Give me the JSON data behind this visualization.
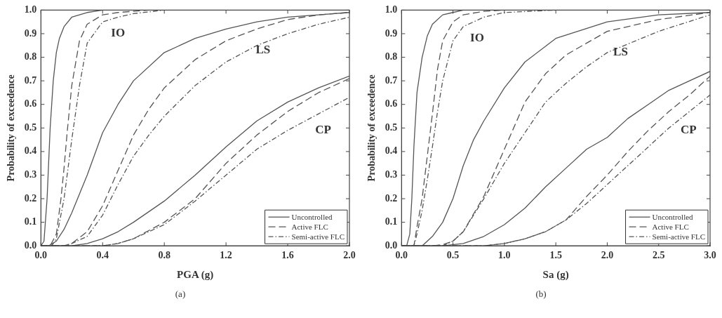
{
  "chart_data": [
    {
      "type": "line",
      "xlabel": "PGA (g)",
      "ylabel": "Probability of exceedence",
      "xlim": [
        0,
        2
      ],
      "ylim": [
        0,
        1
      ],
      "xticks": [
        {
          "value": 0,
          "label": "0.0"
        },
        {
          "value": 0.4,
          "label": "0.4"
        },
        {
          "value": 0.8,
          "label": "0.8"
        },
        {
          "value": 1.2,
          "label": "1.2"
        },
        {
          "value": 1.6,
          "label": "1.6"
        },
        {
          "value": 2,
          "label": "2.0"
        }
      ],
      "yticks": [
        {
          "value": 0,
          "label": "0.0"
        },
        {
          "value": 0.1,
          "label": "0.1"
        },
        {
          "value": 0.2,
          "label": "0.2"
        },
        {
          "value": 0.3,
          "label": "0.3"
        },
        {
          "value": 0.4,
          "label": "0.4"
        },
        {
          "value": 0.5,
          "label": "0.5"
        },
        {
          "value": 0.6,
          "label": "0.6"
        },
        {
          "value": 0.7,
          "label": "0.7"
        },
        {
          "value": 0.8,
          "label": "0.8"
        },
        {
          "value": 0.9,
          "label": "0.9"
        },
        {
          "value": 1,
          "label": "1.0"
        }
      ],
      "grid": false,
      "legend": "bottom right",
      "series": [
        {
          "name": "Uncontrolled",
          "color": "#555555",
          "line_style": "solid",
          "x": [
            0,
            0.02,
            0.04,
            0.06,
            0.08,
            0.1,
            0.12,
            0.15,
            0.2,
            0.3,
            0.4,
            2.0
          ],
          "values": [
            0,
            0.02,
            0.2,
            0.5,
            0.7,
            0.82,
            0.88,
            0.93,
            0.97,
            0.99,
            1.0,
            1.0
          ]
        },
        {
          "name": "Active FLC",
          "color": "#555555",
          "line_style": "dashed",
          "x": [
            0,
            0.06,
            0.1,
            0.13,
            0.15,
            0.17,
            0.2,
            0.25,
            0.3,
            0.4,
            0.5,
            0.7,
            2.0
          ],
          "values": [
            0,
            0,
            0.05,
            0.2,
            0.33,
            0.48,
            0.68,
            0.87,
            0.94,
            0.98,
            0.99,
            1.0,
            1.0
          ]
        },
        {
          "name": "Semi-active FLC",
          "color": "#555555",
          "line_style": "dotted",
          "x": [
            0,
            0.07,
            0.1,
            0.15,
            0.2,
            0.25,
            0.3,
            0.4,
            0.5,
            0.6,
            0.8,
            2.0
          ],
          "values": [
            0,
            0,
            0.03,
            0.2,
            0.45,
            0.68,
            0.86,
            0.95,
            0.97,
            0.985,
            1.0,
            1.0
          ]
        },
        {
          "color": "#555555",
          "line_style": "solid",
          "x": [
            0,
            0.05,
            0.1,
            0.15,
            0.2,
            0.3,
            0.4,
            0.5,
            0.6,
            0.8,
            1.0,
            1.2,
            1.4,
            1.6,
            1.8,
            2.0
          ],
          "values": [
            0,
            0,
            0.02,
            0.07,
            0.14,
            0.3,
            0.48,
            0.6,
            0.7,
            0.82,
            0.88,
            0.92,
            0.95,
            0.97,
            0.98,
            0.99
          ]
        },
        {
          "color": "#555555",
          "line_style": "dashed",
          "x": [
            0,
            0.15,
            0.2,
            0.3,
            0.4,
            0.5,
            0.6,
            0.7,
            0.8,
            1.0,
            1.2,
            1.4,
            1.6,
            1.8,
            2.0
          ],
          "values": [
            0,
            0,
            0.01,
            0.06,
            0.17,
            0.32,
            0.47,
            0.58,
            0.67,
            0.79,
            0.87,
            0.92,
            0.96,
            0.98,
            0.99
          ]
        },
        {
          "color": "#555555",
          "line_style": "dotted",
          "x": [
            0,
            0.15,
            0.2,
            0.3,
            0.4,
            0.5,
            0.6,
            0.7,
            0.8,
            1.0,
            1.2,
            1.4,
            1.6,
            1.8,
            2.0
          ],
          "values": [
            0,
            0,
            0.01,
            0.04,
            0.13,
            0.26,
            0.38,
            0.47,
            0.55,
            0.68,
            0.78,
            0.85,
            0.9,
            0.94,
            0.97
          ]
        },
        {
          "color": "#555555",
          "line_style": "solid",
          "x": [
            0,
            0.2,
            0.3,
            0.4,
            0.5,
            0.6,
            0.8,
            1.0,
            1.2,
            1.4,
            1.6,
            1.8,
            2.0
          ],
          "values": [
            0,
            0,
            0.01,
            0.03,
            0.06,
            0.1,
            0.19,
            0.3,
            0.42,
            0.53,
            0.61,
            0.67,
            0.72
          ]
        },
        {
          "color": "#555555",
          "line_style": "dashed",
          "x": [
            0,
            0.4,
            0.5,
            0.6,
            0.8,
            1.0,
            1.2,
            1.4,
            1.6,
            1.8,
            2.0
          ],
          "values": [
            0,
            0,
            0.01,
            0.03,
            0.1,
            0.2,
            0.35,
            0.47,
            0.57,
            0.65,
            0.71
          ]
        },
        {
          "color": "#555555",
          "line_style": "dotted",
          "x": [
            0,
            0.4,
            0.5,
            0.6,
            0.8,
            1.0,
            1.2,
            1.4,
            1.6,
            1.8,
            2.0
          ],
          "values": [
            0,
            0,
            0.01,
            0.03,
            0.09,
            0.19,
            0.3,
            0.41,
            0.49,
            0.56,
            0.63
          ]
        }
      ],
      "annotations": [
        "IO",
        "LS",
        "CP",
        "(a)"
      ]
    },
    {
      "type": "line",
      "xlabel": "Sa (g)",
      "ylabel": "Probability of exceedence",
      "xlim": [
        0,
        3
      ],
      "ylim": [
        0,
        1
      ],
      "xticks": [
        {
          "value": 0,
          "label": "0.0"
        },
        {
          "value": 0.5,
          "label": "0.5"
        },
        {
          "value": 1,
          "label": "1.0"
        },
        {
          "value": 1.5,
          "label": "1.5"
        },
        {
          "value": 2,
          "label": "2.0"
        },
        {
          "value": 2.5,
          "label": "2.5"
        },
        {
          "value": 3,
          "label": "3.0"
        }
      ],
      "yticks": [
        {
          "value": 0,
          "label": "0.0"
        },
        {
          "value": 0.1,
          "label": "0.1"
        },
        {
          "value": 0.2,
          "label": "0.2"
        },
        {
          "value": 0.3,
          "label": "0.3"
        },
        {
          "value": 0.4,
          "label": "0.4"
        },
        {
          "value": 0.5,
          "label": "0.5"
        },
        {
          "value": 0.6,
          "label": "0.6"
        },
        {
          "value": 0.7,
          "label": "0.7"
        },
        {
          "value": 0.8,
          "label": "0.8"
        },
        {
          "value": 0.9,
          "label": "0.9"
        },
        {
          "value": 1,
          "label": "1.0"
        }
      ],
      "grid": false,
      "legend": "bottom right",
      "series": [
        {
          "name": "Uncontrolled",
          "color": "#555555",
          "line_style": "solid",
          "x": [
            0,
            0.05,
            0.08,
            0.1,
            0.12,
            0.15,
            0.2,
            0.25,
            0.3,
            0.4,
            0.5,
            0.6,
            3.0
          ],
          "values": [
            0,
            0,
            0.05,
            0.2,
            0.42,
            0.65,
            0.8,
            0.89,
            0.94,
            0.98,
            0.99,
            1.0,
            1.0
          ]
        },
        {
          "name": "Active FLC",
          "color": "#555555",
          "line_style": "dashed",
          "x": [
            0,
            0.12,
            0.15,
            0.2,
            0.25,
            0.3,
            0.35,
            0.4,
            0.5,
            0.6,
            0.8,
            1.0,
            3.0
          ],
          "values": [
            0,
            0,
            0.08,
            0.2,
            0.38,
            0.56,
            0.75,
            0.87,
            0.95,
            0.98,
            0.995,
            1.0,
            1.0
          ]
        },
        {
          "name": "Semi-active FLC",
          "color": "#555555",
          "line_style": "dotted",
          "x": [
            0,
            0.12,
            0.15,
            0.2,
            0.25,
            0.3,
            0.35,
            0.4,
            0.5,
            0.6,
            0.8,
            1.0,
            1.5,
            3.0
          ],
          "values": [
            0,
            0,
            0.05,
            0.15,
            0.28,
            0.42,
            0.57,
            0.7,
            0.87,
            0.93,
            0.97,
            0.99,
            1.0,
            1.0
          ]
        },
        {
          "color": "#555555",
          "line_style": "solid",
          "x": [
            0,
            0.2,
            0.3,
            0.4,
            0.5,
            0.6,
            0.7,
            0.8,
            1.0,
            1.2,
            1.5,
            2.0,
            2.5,
            3.0
          ],
          "values": [
            0,
            0,
            0.04,
            0.1,
            0.2,
            0.34,
            0.45,
            0.53,
            0.67,
            0.78,
            0.88,
            0.95,
            0.98,
            0.99
          ]
        },
        {
          "color": "#555555",
          "line_style": "dashed",
          "x": [
            0,
            0.3,
            0.4,
            0.5,
            0.6,
            0.8,
            1.0,
            1.2,
            1.4,
            1.6,
            1.8,
            2.0,
            2.5,
            3.0
          ],
          "values": [
            0,
            0,
            0.005,
            0.02,
            0.06,
            0.21,
            0.41,
            0.61,
            0.73,
            0.81,
            0.86,
            0.91,
            0.96,
            0.99
          ]
        },
        {
          "color": "#555555",
          "line_style": "dotted",
          "x": [
            0,
            0.4,
            0.5,
            0.6,
            0.8,
            1.0,
            1.2,
            1.4,
            1.6,
            1.8,
            2.0,
            2.5,
            3.0
          ],
          "values": [
            0,
            0,
            0.02,
            0.06,
            0.2,
            0.35,
            0.48,
            0.61,
            0.69,
            0.76,
            0.82,
            0.91,
            0.98
          ]
        },
        {
          "color": "#555555",
          "line_style": "solid",
          "x": [
            0,
            0.4,
            0.6,
            0.8,
            1.0,
            1.2,
            1.4,
            1.6,
            1.8,
            2.0,
            2.2,
            2.4,
            2.6,
            2.8,
            3.0
          ],
          "values": [
            0,
            0,
            0.01,
            0.04,
            0.09,
            0.16,
            0.25,
            0.33,
            0.41,
            0.46,
            0.54,
            0.6,
            0.66,
            0.7,
            0.74
          ]
        },
        {
          "color": "#555555",
          "line_style": "dashed",
          "x": [
            0,
            0.8,
            1.0,
            1.2,
            1.4,
            1.6,
            1.8,
            2.0,
            2.2,
            2.4,
            2.6,
            2.8,
            3.0
          ],
          "values": [
            0,
            0,
            0.01,
            0.03,
            0.06,
            0.11,
            0.21,
            0.3,
            0.4,
            0.49,
            0.57,
            0.64,
            0.72
          ]
        },
        {
          "color": "#555555",
          "line_style": "dotted",
          "x": [
            0,
            0.8,
            1.0,
            1.2,
            1.4,
            1.6,
            1.8,
            2.0,
            2.2,
            2.4,
            2.6,
            2.8,
            3.0
          ],
          "values": [
            0,
            0,
            0.01,
            0.03,
            0.06,
            0.11,
            0.18,
            0.26,
            0.34,
            0.42,
            0.5,
            0.57,
            0.64
          ]
        }
      ],
      "annotations": [
        "IO",
        "LS",
        "CP",
        "(b)"
      ]
    }
  ]
}
